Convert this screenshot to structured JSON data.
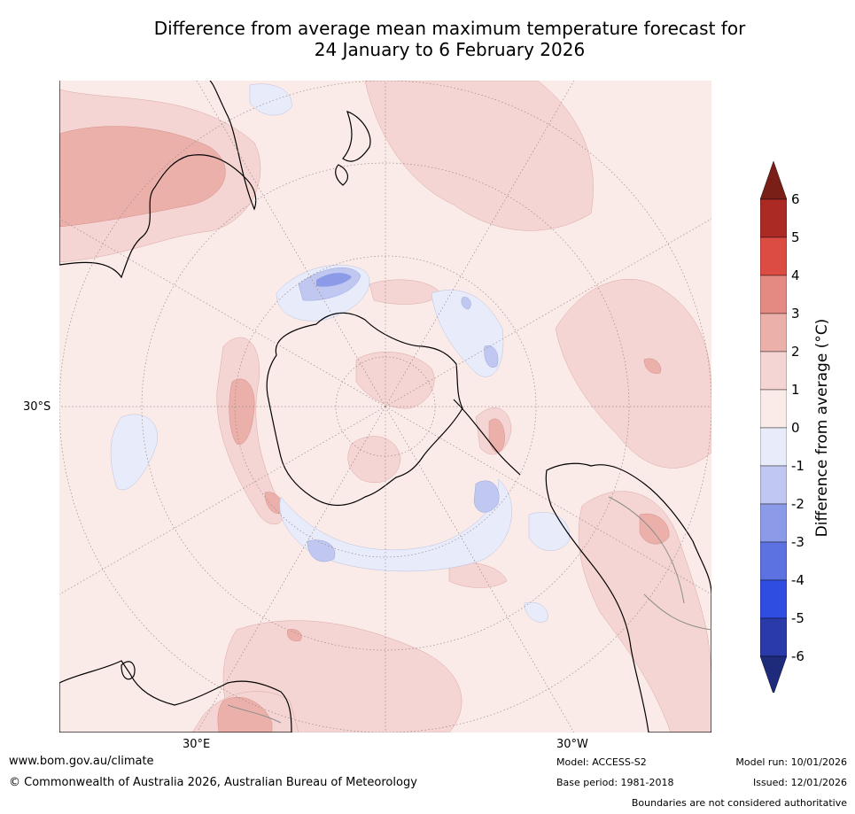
{
  "title": {
    "line1": "Difference from average mean maximum temperature forecast for",
    "line2": "24 January to 6 February 2026"
  },
  "map": {
    "projection": "south polar stereographic",
    "lat_label": "30°S",
    "lon_labels": [
      "30°E",
      "30°W"
    ],
    "colors": {
      "warm_0_1": "#fbebe8",
      "warm_1_2": "#f4d5d3",
      "warm_2_3": "#ecb0ab",
      "warm_3_4": "#e48a82",
      "warm_4_5": "#dc4c43",
      "cool_0_1": "#e8ecfa",
      "cool_1_2": "#c0c8f1",
      "cool_2_3": "#8b9be8",
      "coast": "#000000",
      "border": "#8c8c8c",
      "grid": "#9a8a8a"
    }
  },
  "colorbar": {
    "label": "Difference from average (°C)",
    "ticks": [
      "6",
      "5",
      "4",
      "3",
      "2",
      "1",
      "0",
      "-1",
      "-2",
      "-3",
      "-4",
      "-5",
      "-6"
    ],
    "bins": [
      {
        "range": "above 6",
        "color": "#7a1e18"
      },
      {
        "range": "5 to 6",
        "color": "#ac2a24"
      },
      {
        "range": "4 to 5",
        "color": "#dc4c43"
      },
      {
        "range": "3 to 4",
        "color": "#e48a82"
      },
      {
        "range": "2 to 3",
        "color": "#ecb0ab"
      },
      {
        "range": "1 to 2",
        "color": "#f4d5d3"
      },
      {
        "range": "0 to 1",
        "color": "#fbebe8"
      },
      {
        "range": "-1 to 0",
        "color": "#e8ecfa"
      },
      {
        "range": "-2 to -1",
        "color": "#c0c8f1"
      },
      {
        "range": "-3 to -2",
        "color": "#8b9be8"
      },
      {
        "range": "-4 to -3",
        "color": "#5b72e0"
      },
      {
        "range": "-5 to -4",
        "color": "#2f4de0"
      },
      {
        "range": "-6 to -5",
        "color": "#2a3aa8"
      },
      {
        "range": "below -6",
        "color": "#1e2a7a"
      }
    ]
  },
  "footer": {
    "url": "www.bom.gov.au/climate",
    "copyright": "© Commonwealth of Australia 2026, Australian Bureau of Meteorology",
    "model": "Model: ACCESS-S2",
    "base_period": "Base period: 1981-2018",
    "model_run": "Model run: 10/01/2026",
    "issued": "Issued: 12/01/2026",
    "disclaimer": "Boundaries are not considered authoritative"
  }
}
